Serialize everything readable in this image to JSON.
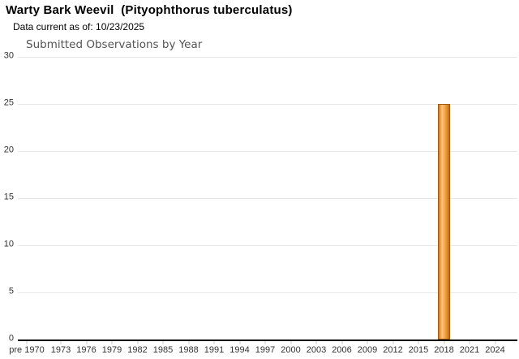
{
  "header": {
    "title": "Warty Bark Weevil  (Pityophthorus tuberculatus)",
    "data_current": "Data current as of: 10/23/2025"
  },
  "chart_data": {
    "type": "bar",
    "title": "Submitted Observations by Year",
    "xlabel": "",
    "ylabel": "",
    "ylim": [
      0,
      30
    ],
    "y_ticks": [
      0,
      5,
      10,
      15,
      20,
      25,
      30
    ],
    "x_tick_labels": [
      "pre 1970",
      "1973",
      "1976",
      "1979",
      "1982",
      "1985",
      "1988",
      "1991",
      "1994",
      "1997",
      "2000",
      "2003",
      "2006",
      "2009",
      "2012",
      "2015",
      "2018",
      "2021",
      "2024"
    ],
    "grid": "horizontal",
    "legend": "none",
    "series": [
      {
        "name": "Submitted Observations",
        "points": [
          {
            "x": "2018",
            "y": 25
          }
        ]
      }
    ],
    "colors": {
      "bar_fill": "#f6a94e",
      "bar_border": "#9f5a10",
      "gridline": "#e7e7e7",
      "axis_line": "#000000",
      "tick": "#cccccc",
      "axis_text": "#333333",
      "chart_title_text": "#555555"
    }
  }
}
